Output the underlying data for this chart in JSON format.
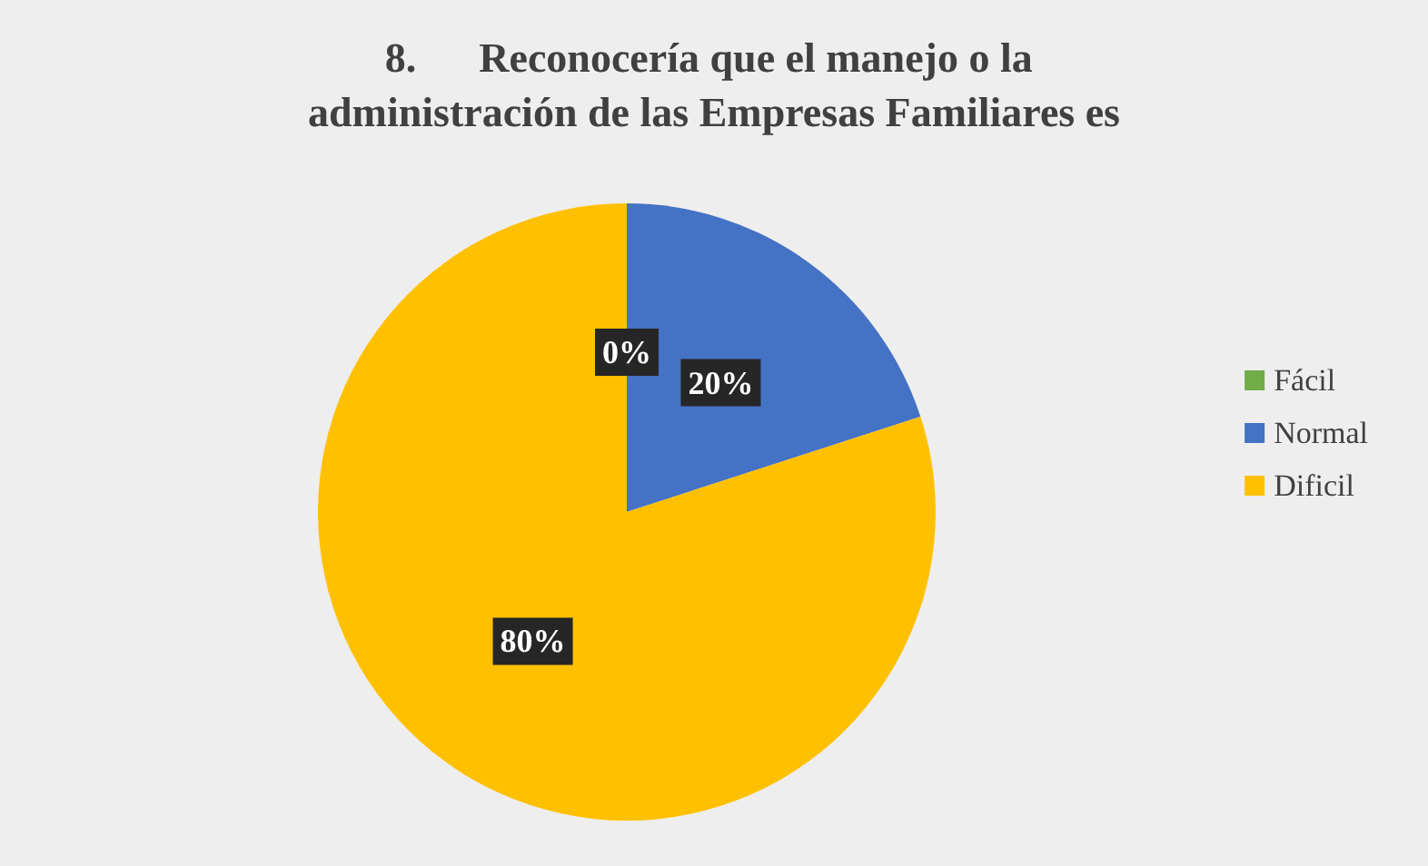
{
  "chart_data": {
    "type": "pie",
    "title": "8.      Reconocería que el manejo o la administración de las Empresas Familiares es",
    "categories": [
      "Fácil",
      "Normal",
      "Dificil"
    ],
    "values": [
      0,
      20,
      80
    ],
    "colors": [
      "#70ad47",
      "#4472c4",
      "#ffc000"
    ],
    "value_labels": [
      "0%",
      "20%",
      "80%"
    ],
    "legend": "right"
  }
}
